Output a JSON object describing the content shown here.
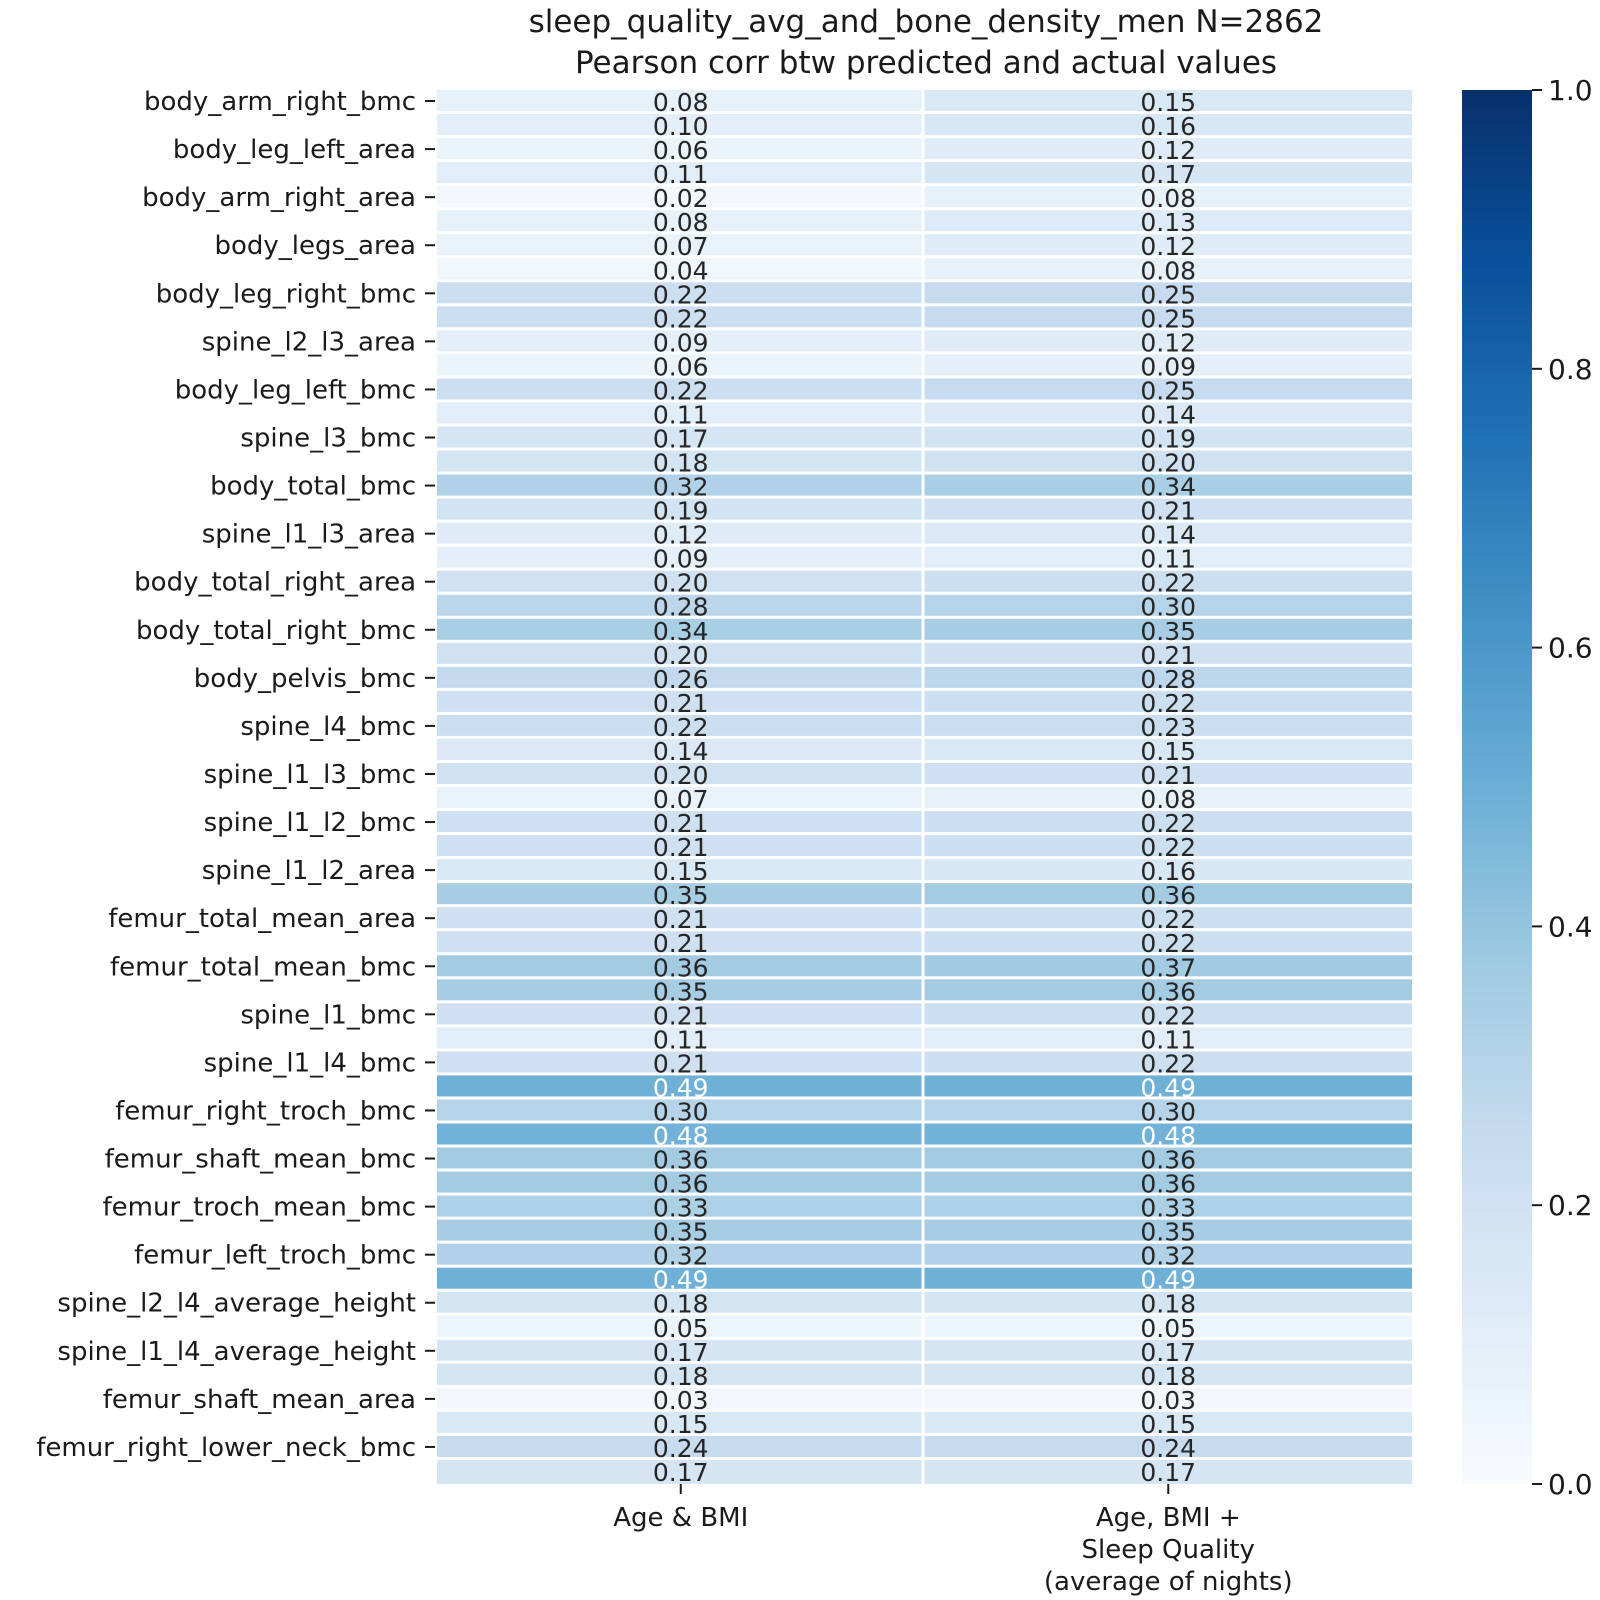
{
  "chart_data": {
    "type": "heatmap",
    "title": "sleep_quality_avg_and_bone_density_men N=2862",
    "subtitle": "Pearson corr btw predicted and actual values",
    "columns": [
      "Age & BMI",
      "Age, BMI +\nSleep Quality\n(average of nights)"
    ],
    "row_labels_shown": [
      "body_arm_right_bmc",
      "",
      "body_leg_left_area",
      "",
      "body_arm_right_area",
      "",
      "body_legs_area",
      "",
      "body_leg_right_bmc",
      "",
      "spine_l2_l3_area",
      "",
      "body_leg_left_bmc",
      "",
      "spine_l3_bmc",
      "",
      "body_total_bmc",
      "",
      "spine_l1_l3_area",
      "",
      "body_total_right_area",
      "",
      "body_total_right_bmc",
      "",
      "body_pelvis_bmc",
      "",
      "spine_l4_bmc",
      "",
      "spine_l1_l3_bmc",
      "",
      "spine_l1_l2_bmc",
      "",
      "spine_l1_l2_area",
      "",
      "femur_total_mean_area",
      "",
      "femur_total_mean_bmc",
      "",
      "spine_l1_bmc",
      "",
      "spine_l1_l4_bmc",
      "",
      "femur_right_troch_bmc",
      "",
      "femur_shaft_mean_bmc",
      "",
      "femur_troch_mean_bmc",
      "",
      "femur_left_troch_bmc",
      "",
      "spine_l2_l4_average_height",
      "",
      "spine_l1_l4_average_height",
      "",
      "femur_shaft_mean_area",
      "",
      "femur_right_lower_neck_bmc",
      ""
    ],
    "values": [
      [
        0.08,
        0.15
      ],
      [
        0.1,
        0.16
      ],
      [
        0.06,
        0.12
      ],
      [
        0.11,
        0.17
      ],
      [
        0.02,
        0.08
      ],
      [
        0.08,
        0.13
      ],
      [
        0.07,
        0.12
      ],
      [
        0.04,
        0.08
      ],
      [
        0.22,
        0.25
      ],
      [
        0.22,
        0.25
      ],
      [
        0.09,
        0.12
      ],
      [
        0.06,
        0.09
      ],
      [
        0.22,
        0.25
      ],
      [
        0.11,
        0.14
      ],
      [
        0.17,
        0.19
      ],
      [
        0.18,
        0.2
      ],
      [
        0.32,
        0.34
      ],
      [
        0.19,
        0.21
      ],
      [
        0.12,
        0.14
      ],
      [
        0.09,
        0.11
      ],
      [
        0.2,
        0.22
      ],
      [
        0.28,
        0.3
      ],
      [
        0.34,
        0.35
      ],
      [
        0.2,
        0.21
      ],
      [
        0.26,
        0.28
      ],
      [
        0.21,
        0.22
      ],
      [
        0.22,
        0.23
      ],
      [
        0.14,
        0.15
      ],
      [
        0.2,
        0.21
      ],
      [
        0.07,
        0.08
      ],
      [
        0.21,
        0.22
      ],
      [
        0.21,
        0.22
      ],
      [
        0.15,
        0.16
      ],
      [
        0.35,
        0.36
      ],
      [
        0.21,
        0.22
      ],
      [
        0.21,
        0.22
      ],
      [
        0.36,
        0.37
      ],
      [
        0.35,
        0.36
      ],
      [
        0.21,
        0.22
      ],
      [
        0.11,
        0.11
      ],
      [
        0.21,
        0.22
      ],
      [
        0.49,
        0.49
      ],
      [
        0.3,
        0.3
      ],
      [
        0.48,
        0.48
      ],
      [
        0.36,
        0.36
      ],
      [
        0.36,
        0.36
      ],
      [
        0.33,
        0.33
      ],
      [
        0.35,
        0.35
      ],
      [
        0.32,
        0.32
      ],
      [
        0.49,
        0.49
      ],
      [
        0.18,
        0.18
      ],
      [
        0.05,
        0.05
      ],
      [
        0.17,
        0.17
      ],
      [
        0.18,
        0.18
      ],
      [
        0.03,
        0.03
      ],
      [
        0.15,
        0.15
      ],
      [
        0.24,
        0.24
      ],
      [
        0.17,
        0.17
      ]
    ],
    "value_format": "0.00",
    "colormap": "Blues",
    "vmin": 0.0,
    "vmax": 1.0,
    "colorbar_ticks": [
      "0.0",
      "0.2",
      "0.4",
      "0.6",
      "0.8",
      "1.0"
    ],
    "colors": {
      "grid_line": "#ffffff",
      "text_dark": "#262626",
      "text_light": "#ffffff"
    }
  }
}
